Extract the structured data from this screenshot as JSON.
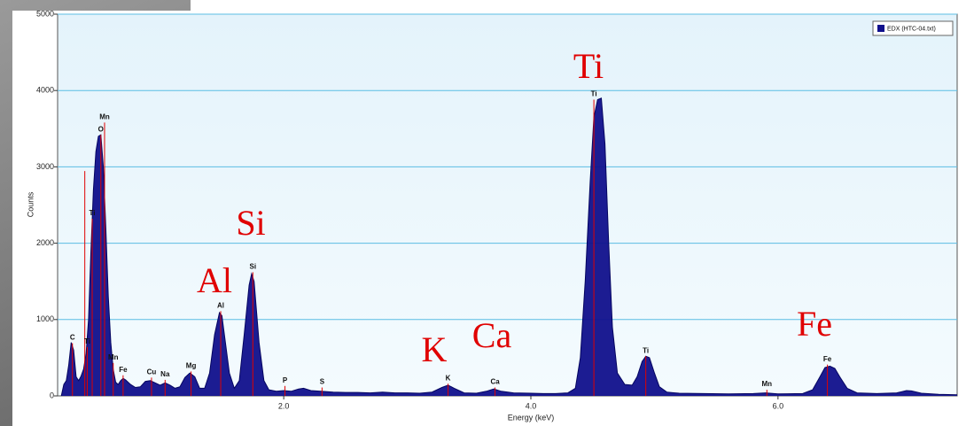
{
  "chart_data": {
    "type": "spectrum",
    "x_label": "Energy (keV)",
    "y_label": "Counts",
    "xlim": [
      0.17,
      7.45
    ],
    "ylim": [
      0,
      5000
    ],
    "xticks": [
      {
        "value": 2,
        "label": "2.0"
      },
      {
        "value": 4,
        "label": "4.0"
      },
      {
        "value": 6,
        "label": "6.0"
      }
    ],
    "yticks": [
      0,
      1000,
      2000,
      3000,
      4000,
      5000
    ],
    "grid": true,
    "legend": "top-right",
    "series": [
      {
        "name": "EDX (HTC-04.txt)",
        "color": "#10108c",
        "x": [
          0.2,
          0.22,
          0.24,
          0.26,
          0.28,
          0.3,
          0.32,
          0.34,
          0.36,
          0.38,
          0.4,
          0.42,
          0.44,
          0.46,
          0.48,
          0.5,
          0.52,
          0.54,
          0.56,
          0.58,
          0.6,
          0.62,
          0.64,
          0.66,
          0.68,
          0.7,
          0.72,
          0.76,
          0.8,
          0.84,
          0.88,
          0.92,
          0.96,
          1.0,
          1.04,
          1.08,
          1.12,
          1.16,
          1.2,
          1.24,
          1.28,
          1.32,
          1.36,
          1.4,
          1.44,
          1.48,
          1.5,
          1.52,
          1.56,
          1.6,
          1.64,
          1.68,
          1.72,
          1.74,
          1.76,
          1.8,
          1.84,
          1.88,
          1.94,
          2.0,
          2.06,
          2.12,
          2.16,
          2.22,
          2.3,
          2.4,
          2.5,
          2.6,
          2.7,
          2.8,
          2.9,
          3.0,
          3.1,
          3.2,
          3.28,
          3.33,
          3.38,
          3.46,
          3.56,
          3.64,
          3.7,
          3.76,
          3.86,
          4.0,
          4.1,
          4.2,
          4.3,
          4.36,
          4.4,
          4.44,
          4.48,
          4.51,
          4.54,
          4.57,
          4.6,
          4.63,
          4.66,
          4.7,
          4.76,
          4.82,
          4.86,
          4.9,
          4.93,
          4.96,
          5.0,
          5.04,
          5.1,
          5.2,
          5.4,
          5.6,
          5.8,
          5.9,
          6.0,
          6.2,
          6.28,
          6.34,
          6.38,
          6.42,
          6.46,
          6.5,
          6.56,
          6.64,
          6.8,
          6.96,
          7.04,
          7.08,
          7.16,
          7.3,
          7.45
        ],
        "values": [
          0,
          150,
          200,
          400,
          700,
          600,
          250,
          200,
          260,
          350,
          550,
          1000,
          1900,
          2700,
          3200,
          3400,
          3420,
          3000,
          2200,
          1300,
          700,
          350,
          180,
          150,
          200,
          230,
          210,
          150,
          110,
          120,
          190,
          200,
          170,
          140,
          170,
          140,
          100,
          120,
          240,
          300,
          250,
          100,
          100,
          300,
          800,
          1090,
          1050,
          800,
          300,
          100,
          200,
          800,
          1450,
          1600,
          1500,
          700,
          200,
          80,
          60,
          70,
          60,
          90,
          100,
          70,
          60,
          50,
          45,
          45,
          40,
          50,
          40,
          40,
          35,
          50,
          110,
          140,
          100,
          40,
          35,
          60,
          90,
          60,
          40,
          35,
          30,
          30,
          40,
          100,
          500,
          1500,
          2800,
          3650,
          3880,
          3900,
          3300,
          2000,
          900,
          300,
          150,
          140,
          250,
          450,
          520,
          500,
          300,
          120,
          50,
          35,
          30,
          25,
          30,
          40,
          25,
          30,
          80,
          250,
          370,
          390,
          360,
          250,
          100,
          40,
          30,
          40,
          70,
          65,
          35,
          20,
          15
        ]
      }
    ],
    "markers": {
      "color": "#e00000",
      "labels": [
        "C",
        null,
        "Ti",
        "Ti",
        "O",
        "Mn",
        "Mn",
        "Fe",
        "Cu",
        "Na",
        "Mg",
        "Al",
        "Si",
        "P",
        "S",
        "K",
        "Ca",
        "Ti",
        "Ti",
        "Mn",
        "Fe"
      ],
      "energies": [
        0.29,
        0.39,
        0.41,
        0.45,
        0.52,
        0.55,
        0.62,
        0.7,
        0.93,
        1.04,
        1.25,
        1.49,
        1.75,
        2.01,
        2.31,
        3.33,
        3.71,
        4.51,
        4.93,
        5.91,
        6.4
      ],
      "counts": [
        690,
        2945,
        640,
        2320,
        3420,
        3580,
        430,
        270,
        240,
        210,
        320,
        1110,
        1620,
        130,
        110,
        160,
        110,
        3880,
        520,
        80,
        410
      ]
    },
    "annotations": [
      "Ti",
      "Si",
      "Al",
      "K",
      "Ca",
      "Fe"
    ]
  }
}
